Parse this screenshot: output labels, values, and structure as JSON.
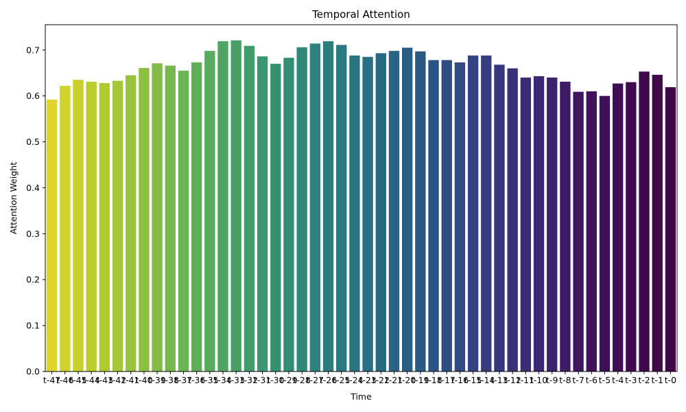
{
  "chart_data": {
    "type": "bar",
    "title": "Temporal Attention",
    "xlabel": "Time",
    "ylabel": "Attention Weight",
    "ylim": [
      0,
      0.755
    ],
    "yticks": [
      0.0,
      0.1,
      0.2,
      0.3,
      0.4,
      0.5,
      0.6,
      0.7
    ],
    "ytick_labels": [
      "0.0",
      "0.1",
      "0.2",
      "0.3",
      "0.4",
      "0.5",
      "0.6",
      "0.7"
    ],
    "grid": false,
    "colormap": "viridis (reversed: yellow at t-47 to dark purple at t-0)",
    "categories": [
      "t-47",
      "t-46",
      "t-45",
      "t-44",
      "t-43",
      "t-42",
      "t-41",
      "t-40",
      "t-39",
      "t-38",
      "t-37",
      "t-36",
      "t-35",
      "t-34",
      "t-33",
      "t-32",
      "t-31",
      "t-30",
      "t-29",
      "t-28",
      "t-27",
      "t-26",
      "t-25",
      "t-24",
      "t-23",
      "t-22",
      "t-21",
      "t-20",
      "t-19",
      "t-18",
      "t-17",
      "t-16",
      "t-15",
      "t-14",
      "t-13",
      "t-12",
      "t-11",
      "t-10",
      "t-9",
      "t-8",
      "t-7",
      "t-6",
      "t-5",
      "t-4",
      "t-3",
      "t-2",
      "t-1",
      "t-0"
    ],
    "values": [
      0.592,
      0.622,
      0.635,
      0.631,
      0.628,
      0.633,
      0.645,
      0.661,
      0.671,
      0.666,
      0.655,
      0.673,
      0.698,
      0.719,
      0.721,
      0.709,
      0.686,
      0.67,
      0.683,
      0.706,
      0.714,
      0.719,
      0.711,
      0.688,
      0.685,
      0.693,
      0.698,
      0.705,
      0.697,
      0.678,
      0.678,
      0.673,
      0.688,
      0.688,
      0.668,
      0.66,
      0.64,
      0.643,
      0.64,
      0.631,
      0.609,
      0.61,
      0.6,
      0.627,
      0.63,
      0.653,
      0.646,
      0.619
    ],
    "colors": [
      "#dfd52e",
      "#d2d32a",
      "#c7d02a",
      "#bccd2c",
      "#b0ca31",
      "#a5c636",
      "#99c33b",
      "#8dbf42",
      "#82bb48",
      "#77b74e",
      "#6cb353",
      "#62ae58",
      "#58aa5d",
      "#4fa562",
      "#48a067",
      "#419b6b",
      "#3b976f",
      "#369173",
      "#328c77",
      "#30877a",
      "#2d827c",
      "#2c7d7e",
      "#2b7880",
      "#2a7381",
      "#296e82",
      "#296883",
      "#2a6384",
      "#2b5d84",
      "#2c5884",
      "#2d5384",
      "#2f4d83",
      "#314882",
      "#334281",
      "#353d7f",
      "#37377c",
      "#393279",
      "#3a2c75",
      "#3b2671",
      "#3c216c",
      "#3d1c67",
      "#3e1762",
      "#3f135d",
      "#3f0f58",
      "#400c54",
      "#400a50",
      "#40084c",
      "#400848",
      "#3f0744"
    ]
  }
}
